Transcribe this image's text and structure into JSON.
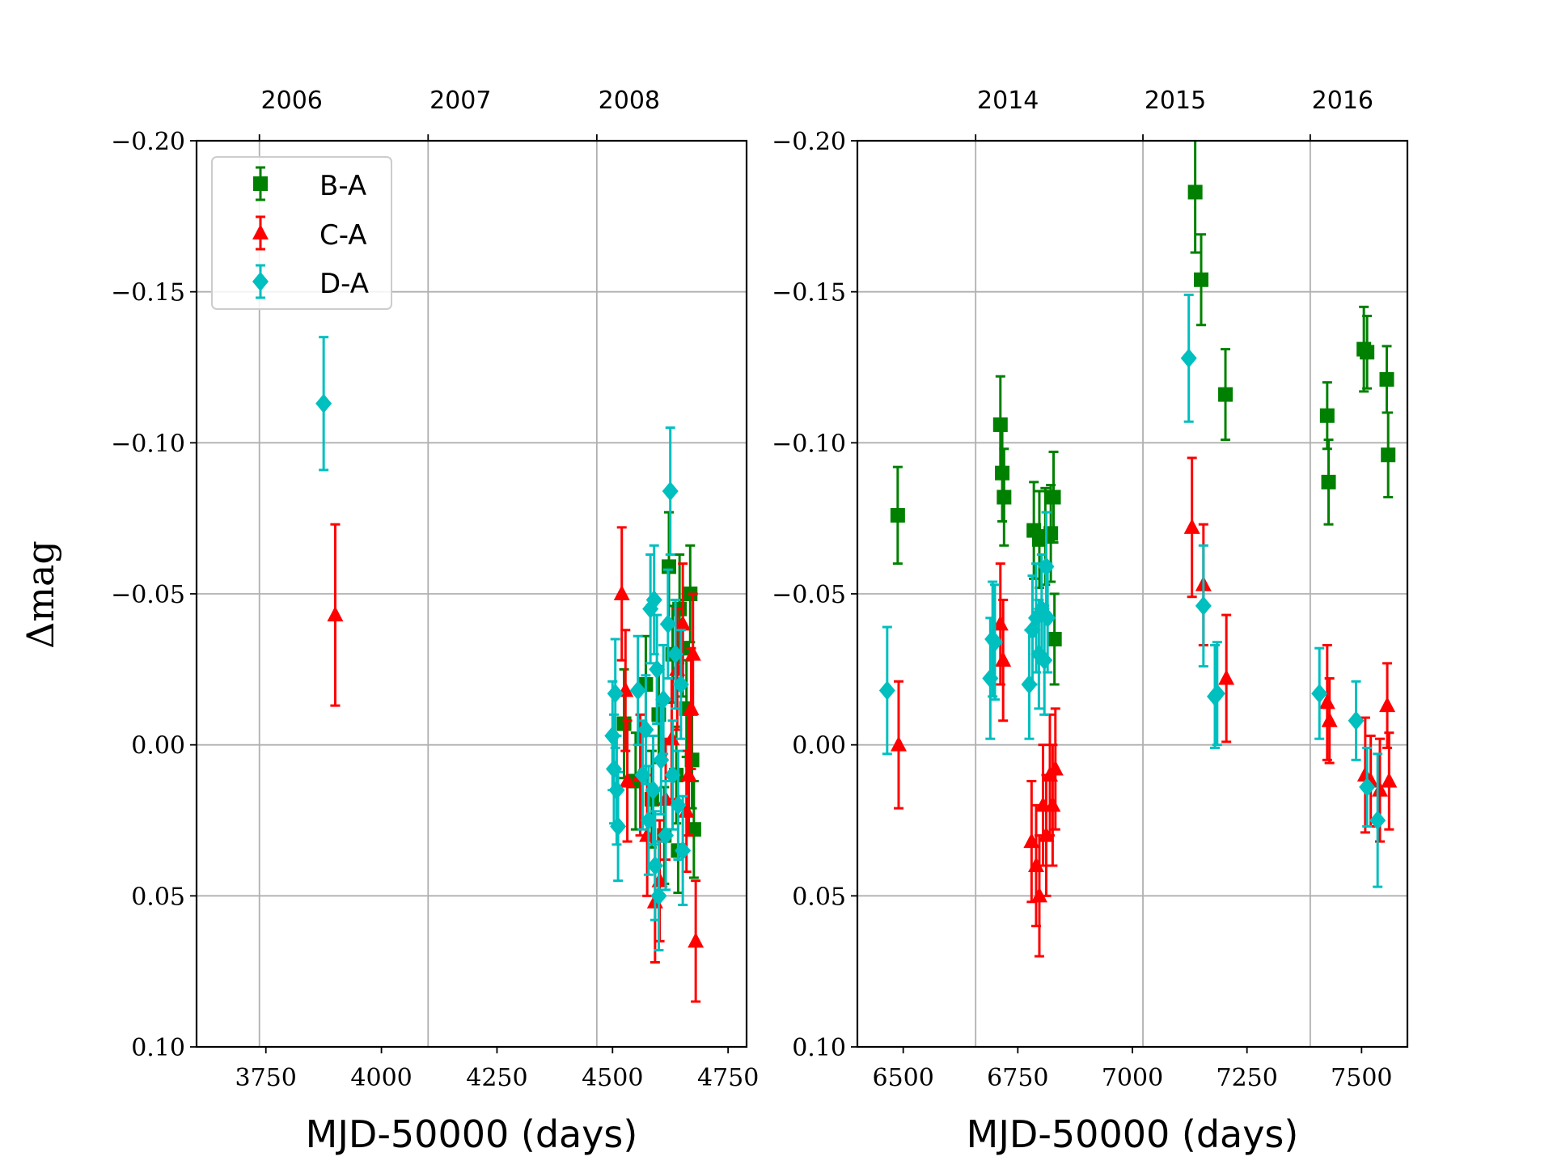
{
  "chart_data": [
    {
      "type": "scatter",
      "panel": "left",
      "xlabel": "MJD-50000 (days)",
      "ylabel": "Δmag",
      "xlim": [
        3600,
        4790
      ],
      "ylim": [
        0.1,
        -0.2
      ],
      "y_inverted": true,
      "grid": true,
      "xticks": [
        3750,
        4000,
        4250,
        4500,
        4750
      ],
      "xtick_labels": [
        "3750",
        "4000",
        "4250",
        "4500",
        "4750"
      ],
      "yticks": [
        -0.2,
        -0.15,
        -0.1,
        -0.05,
        0.0,
        0.05,
        0.1
      ],
      "ytick_labels": [
        "−0.20",
        "−0.15",
        "−0.10",
        "−0.05",
        "0.00",
        "0.05",
        "0.10"
      ],
      "top_axis_years": [
        {
          "x": 3736,
          "label": "2006"
        },
        {
          "x": 4101,
          "label": "2007"
        },
        {
          "x": 4466,
          "label": "2008"
        }
      ],
      "legend": {
        "location": "upper-left",
        "entries": [
          "B-A",
          "C-A",
          "D-A"
        ]
      },
      "series": [
        {
          "name": "B-A",
          "color": "#008000",
          "marker": "square",
          "points": [
            {
              "x": 4525,
              "y": -0.007,
              "err": 0.018
            },
            {
              "x": 4550,
              "y": 0.012,
              "err": 0.016
            },
            {
              "x": 4572,
              "y": -0.02,
              "err": 0.016
            },
            {
              "x": 4585,
              "y": 0.018,
              "err": 0.016
            },
            {
              "x": 4600,
              "y": -0.01,
              "err": 0.016
            },
            {
              "x": 4612,
              "y": 0.03,
              "err": 0.016
            },
            {
              "x": 4622,
              "y": -0.059,
              "err": 0.018
            },
            {
              "x": 4630,
              "y": -0.03,
              "err": 0.016
            },
            {
              "x": 4638,
              "y": 0.01,
              "err": 0.016
            },
            {
              "x": 4645,
              "y": -0.045,
              "err": 0.018
            },
            {
              "x": 4652,
              "y": -0.032,
              "err": 0.016
            },
            {
              "x": 4660,
              "y": -0.012,
              "err": 0.016
            },
            {
              "x": 4668,
              "y": -0.05,
              "err": 0.016
            },
            {
              "x": 4672,
              "y": 0.005,
              "err": 0.016
            },
            {
              "x": 4676,
              "y": 0.028,
              "err": 0.016
            },
            {
              "x": 4642,
              "y": 0.035,
              "err": 0.014
            }
          ]
        },
        {
          "name": "C-A",
          "color": "#ff0000",
          "marker": "triangle",
          "points": [
            {
              "x": 3900,
              "y": -0.043,
              "err": 0.03
            },
            {
              "x": 4520,
              "y": -0.05,
              "err": 0.022
            },
            {
              "x": 4528,
              "y": -0.018,
              "err": 0.02
            },
            {
              "x": 4532,
              "y": 0.012,
              "err": 0.02
            },
            {
              "x": 4560,
              "y": 0.01,
              "err": 0.02
            },
            {
              "x": 4575,
              "y": 0.03,
              "err": 0.02
            },
            {
              "x": 4592,
              "y": 0.052,
              "err": 0.02
            },
            {
              "x": 4602,
              "y": 0.045,
              "err": 0.02
            },
            {
              "x": 4615,
              "y": 0.018,
              "err": 0.02
            },
            {
              "x": 4628,
              "y": -0.002,
              "err": 0.02
            },
            {
              "x": 4640,
              "y": -0.025,
              "err": 0.02
            },
            {
              "x": 4652,
              "y": -0.04,
              "err": 0.02
            },
            {
              "x": 4660,
              "y": 0.022,
              "err": 0.02
            },
            {
              "x": 4665,
              "y": 0.01,
              "err": 0.02
            },
            {
              "x": 4670,
              "y": -0.012,
              "err": 0.02
            },
            {
              "x": 4674,
              "y": -0.03,
              "err": 0.02
            },
            {
              "x": 4680,
              "y": 0.065,
              "err": 0.02
            }
          ]
        },
        {
          "name": "D-A",
          "color": "#00bfbf",
          "marker": "diamond",
          "points": [
            {
              "x": 3875,
              "y": -0.113,
              "err": 0.022
            },
            {
              "x": 4500,
              "y": -0.003,
              "err": 0.018
            },
            {
              "x": 4503,
              "y": 0.008,
              "err": 0.018
            },
            {
              "x": 4506,
              "y": -0.017,
              "err": 0.018
            },
            {
              "x": 4509,
              "y": 0.015,
              "err": 0.018
            },
            {
              "x": 4512,
              "y": 0.027,
              "err": 0.018
            },
            {
              "x": 4555,
              "y": -0.018,
              "err": 0.018
            },
            {
              "x": 4565,
              "y": 0.01,
              "err": 0.018
            },
            {
              "x": 4572,
              "y": -0.005,
              "err": 0.018
            },
            {
              "x": 4578,
              "y": 0.025,
              "err": 0.018
            },
            {
              "x": 4582,
              "y": -0.045,
              "err": 0.018
            },
            {
              "x": 4588,
              "y": 0.015,
              "err": 0.018
            },
            {
              "x": 4592,
              "y": 0.04,
              "err": 0.018
            },
            {
              "x": 4596,
              "y": -0.025,
              "err": 0.018
            },
            {
              "x": 4600,
              "y": 0.05,
              "err": 0.018
            },
            {
              "x": 4605,
              "y": 0.005,
              "err": 0.018
            },
            {
              "x": 4610,
              "y": -0.015,
              "err": 0.018
            },
            {
              "x": 4615,
              "y": 0.03,
              "err": 0.018
            },
            {
              "x": 4620,
              "y": -0.04,
              "err": 0.018
            },
            {
              "x": 4625,
              "y": -0.084,
              "err": 0.021
            },
            {
              "x": 4630,
              "y": 0.01,
              "err": 0.018
            },
            {
              "x": 4636,
              "y": -0.03,
              "err": 0.018
            },
            {
              "x": 4642,
              "y": 0.02,
              "err": 0.018
            },
            {
              "x": 4648,
              "y": -0.02,
              "err": 0.018
            },
            {
              "x": 4652,
              "y": 0.035,
              "err": 0.018
            },
            {
              "x": 4590,
              "y": -0.048,
              "err": 0.018
            }
          ]
        }
      ]
    },
    {
      "type": "scatter",
      "panel": "right",
      "xlabel": "MJD-50000 (days)",
      "xlim": [
        6400,
        7600
      ],
      "ylim": [
        0.1,
        -0.2
      ],
      "y_inverted": true,
      "grid": true,
      "xticks": [
        6500,
        6750,
        7000,
        7250,
        7500
      ],
      "xtick_labels": [
        "6500",
        "6750",
        "7000",
        "7250",
        "7500"
      ],
      "yticks": [
        -0.2,
        -0.15,
        -0.1,
        -0.05,
        0.0,
        0.05,
        0.1
      ],
      "ytick_labels": [
        "−0.20",
        "−0.15",
        "−0.10",
        "−0.05",
        "0.00",
        "0.05",
        "0.10"
      ],
      "top_axis_years": [
        {
          "x": 6658,
          "label": "2014"
        },
        {
          "x": 7023,
          "label": "2015"
        },
        {
          "x": 7388,
          "label": "2016"
        }
      ],
      "series": [
        {
          "name": "B-A",
          "color": "#008000",
          "marker": "square",
          "points": [
            {
              "x": 6488,
              "y": -0.076,
              "err": 0.016
            },
            {
              "x": 6712,
              "y": -0.106,
              "err": 0.016
            },
            {
              "x": 6716,
              "y": -0.09,
              "err": 0.016
            },
            {
              "x": 6720,
              "y": -0.082,
              "err": 0.016
            },
            {
              "x": 6785,
              "y": -0.071,
              "err": 0.016
            },
            {
              "x": 6797,
              "y": -0.068,
              "err": 0.016
            },
            {
              "x": 6810,
              "y": -0.069,
              "err": 0.016
            },
            {
              "x": 6822,
              "y": -0.07,
              "err": 0.016
            },
            {
              "x": 6828,
              "y": -0.082,
              "err": 0.015
            },
            {
              "x": 6830,
              "y": -0.035,
              "err": 0.015
            },
            {
              "x": 7137,
              "y": -0.183,
              "err": 0.02
            },
            {
              "x": 7150,
              "y": -0.154,
              "err": 0.015
            },
            {
              "x": 7203,
              "y": -0.116,
              "err": 0.015
            },
            {
              "x": 7425,
              "y": -0.109,
              "err": 0.011
            },
            {
              "x": 7428,
              "y": -0.087,
              "err": 0.014
            },
            {
              "x": 7505,
              "y": -0.131,
              "err": 0.014
            },
            {
              "x": 7512,
              "y": -0.13,
              "err": 0.012
            },
            {
              "x": 7555,
              "y": -0.121,
              "err": 0.011
            },
            {
              "x": 7558,
              "y": -0.096,
              "err": 0.014
            }
          ]
        },
        {
          "name": "C-A",
          "color": "#ff0000",
          "marker": "triangle",
          "points": [
            {
              "x": 6490,
              "y": 0.0,
              "err": 0.021
            },
            {
              "x": 6712,
              "y": -0.04,
              "err": 0.02
            },
            {
              "x": 6718,
              "y": -0.028,
              "err": 0.02
            },
            {
              "x": 6780,
              "y": 0.032,
              "err": 0.02
            },
            {
              "x": 6790,
              "y": 0.04,
              "err": 0.02
            },
            {
              "x": 6797,
              "y": 0.05,
              "err": 0.02
            },
            {
              "x": 6805,
              "y": 0.02,
              "err": 0.02
            },
            {
              "x": 6812,
              "y": 0.03,
              "err": 0.02
            },
            {
              "x": 6820,
              "y": 0.01,
              "err": 0.02
            },
            {
              "x": 6826,
              "y": 0.02,
              "err": 0.02
            },
            {
              "x": 6832,
              "y": 0.008,
              "err": 0.02
            },
            {
              "x": 7130,
              "y": -0.072,
              "err": 0.023
            },
            {
              "x": 7155,
              "y": -0.053,
              "err": 0.02
            },
            {
              "x": 7205,
              "y": -0.022,
              "err": 0.021
            },
            {
              "x": 7425,
              "y": -0.014,
              "err": 0.019
            },
            {
              "x": 7430,
              "y": -0.008,
              "err": 0.014
            },
            {
              "x": 7508,
              "y": 0.01,
              "err": 0.019
            },
            {
              "x": 7520,
              "y": 0.012,
              "err": 0.015
            },
            {
              "x": 7540,
              "y": 0.015,
              "err": 0.017
            },
            {
              "x": 7556,
              "y": -0.013,
              "err": 0.014
            },
            {
              "x": 7560,
              "y": 0.012,
              "err": 0.016
            }
          ]
        },
        {
          "name": "D-A",
          "color": "#00bfbf",
          "marker": "diamond",
          "points": [
            {
              "x": 6465,
              "y": -0.018,
              "err": 0.021
            },
            {
              "x": 6690,
              "y": -0.022,
              "err": 0.02
            },
            {
              "x": 6695,
              "y": -0.035,
              "err": 0.019
            },
            {
              "x": 6700,
              "y": -0.034,
              "err": 0.019
            },
            {
              "x": 6775,
              "y": -0.02,
              "err": 0.018
            },
            {
              "x": 6782,
              "y": -0.038,
              "err": 0.018
            },
            {
              "x": 6790,
              "y": -0.042,
              "err": 0.018
            },
            {
              "x": 6796,
              "y": -0.03,
              "err": 0.018
            },
            {
              "x": 6802,
              "y": -0.045,
              "err": 0.018
            },
            {
              "x": 6808,
              "y": -0.028,
              "err": 0.018
            },
            {
              "x": 6812,
              "y": -0.059,
              "err": 0.018
            },
            {
              "x": 6815,
              "y": -0.042,
              "err": 0.018
            },
            {
              "x": 7123,
              "y": -0.128,
              "err": 0.021
            },
            {
              "x": 7155,
              "y": -0.046,
              "err": 0.02
            },
            {
              "x": 7180,
              "y": -0.016,
              "err": 0.017
            },
            {
              "x": 7185,
              "y": -0.017,
              "err": 0.017
            },
            {
              "x": 7408,
              "y": -0.017,
              "err": 0.015
            },
            {
              "x": 7488,
              "y": -0.008,
              "err": 0.013
            },
            {
              "x": 7512,
              "y": 0.014,
              "err": 0.013
            },
            {
              "x": 7535,
              "y": 0.025,
              "err": 0.022
            }
          ]
        }
      ]
    }
  ]
}
